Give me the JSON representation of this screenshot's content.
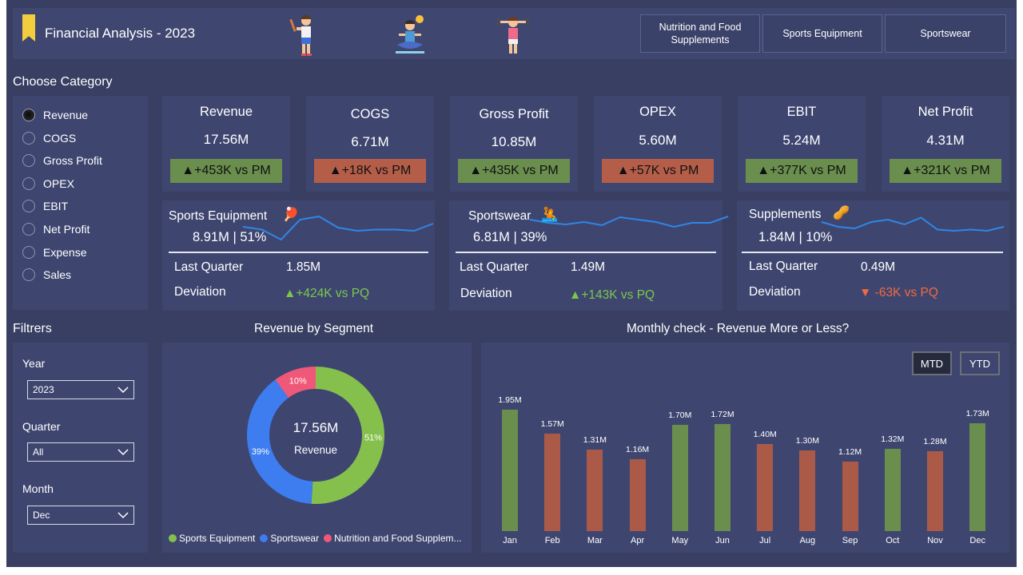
{
  "header": {
    "title": "Financial Analysis - 2023",
    "category_buttons": [
      "Nutrition and Food Supplements",
      "Sports Equipment",
      "Sportswear"
    ]
  },
  "category": {
    "title": "Choose Category",
    "options": [
      "Revenue",
      "COGS",
      "Gross Profit",
      "OPEX",
      "EBIT",
      "Net Profit",
      "Expense",
      "Sales"
    ],
    "selected": "Revenue"
  },
  "kpis": [
    {
      "title": "Revenue",
      "value": "17.56M",
      "delta": "+453K vs PM",
      "direction": "up"
    },
    {
      "title": "COGS",
      "value": "6.71M",
      "delta": "+18K vs PM",
      "direction": "down"
    },
    {
      "title": "Gross Profit",
      "value": "10.85M",
      "delta": "+435K vs PM",
      "direction": "up"
    },
    {
      "title": "OPEX",
      "value": "5.60M",
      "delta": "+57K vs PM",
      "direction": "down"
    },
    {
      "title": "EBIT",
      "value": "5.24M",
      "delta": "+377K vs PM",
      "direction": "up"
    },
    {
      "title": "Net Profit",
      "value": "4.31M",
      "delta": "+321K vs PM",
      "direction": "up"
    }
  ],
  "segments": [
    {
      "name": "Sports Equipment",
      "summary": "8.91M | 51%",
      "last_quarter_label": "Last Quarter",
      "last_quarter": "1.85M",
      "deviation_label": "Deviation",
      "deviation": "+424K vs PQ",
      "direction": "up",
      "trend": [
        0.62,
        0.55,
        0.3,
        0.8,
        0.88,
        0.6,
        0.52,
        0.55,
        0.55,
        0.52,
        0.7
      ]
    },
    {
      "name": "Sportswear",
      "summary": "6.81M | 39%",
      "last_quarter_label": "Last Quarter",
      "last_quarter": "1.49M",
      "deviation_label": "Deviation",
      "deviation": "+143K vs PQ",
      "direction": "up",
      "trend": [
        0.8,
        0.72,
        0.68,
        0.74,
        0.66,
        0.86,
        0.8,
        0.74,
        0.62,
        0.72,
        0.72,
        0.88
      ]
    },
    {
      "name": "Supplements",
      "summary": "1.84M | 10%",
      "last_quarter_label": "Last Quarter",
      "last_quarter": "0.49M",
      "deviation_label": "Deviation",
      "deviation": "-63K vs PQ",
      "direction": "down",
      "trend": [
        0.74,
        0.62,
        0.58,
        0.74,
        0.8,
        0.68,
        0.85,
        0.55,
        0.52,
        0.55,
        0.52,
        0.62
      ]
    }
  ],
  "filters": {
    "title": "Filtrers",
    "year": {
      "label": "Year",
      "value": "2023"
    },
    "quarter": {
      "label": "Quarter",
      "value": "All"
    },
    "month": {
      "label": "Month",
      "value": "Dec"
    }
  },
  "donut": {
    "title": "Revenue by Segment",
    "center_value": "17.56M",
    "center_label": "Revenue",
    "legend": [
      "Sports Equipment",
      "Sportswear",
      "Nutrition and Food Supplem..."
    ],
    "colors": [
      "#86c04c",
      "#3d7df0",
      "#ef5878"
    ]
  },
  "monthly": {
    "title": "Monthly check - Revenue More or Less?",
    "toggle": [
      "MTD",
      "YTD"
    ]
  },
  "chart_data": [
    {
      "type": "pie",
      "title": "Revenue by Segment",
      "categories": [
        "Sports Equipment",
        "Sportswear",
        "Nutrition and Food Supplem..."
      ],
      "values": [
        51,
        39,
        10
      ],
      "labels": [
        "51%",
        "39%",
        "10%"
      ]
    },
    {
      "type": "bar",
      "title": "Monthly check - Revenue More or Less?",
      "categories": [
        "Jan",
        "Feb",
        "Mar",
        "Apr",
        "May",
        "Jun",
        "Jul",
        "Aug",
        "Sep",
        "Oct",
        "Nov",
        "Dec"
      ],
      "values": [
        1.95,
        1.57,
        1.31,
        1.16,
        1.7,
        1.72,
        1.4,
        1.3,
        1.12,
        1.32,
        1.28,
        1.73
      ],
      "labels": [
        "1.95M",
        "1.57M",
        "1.31M",
        "1.16M",
        "1.70M",
        "1.72M",
        "1.40M",
        "1.30M",
        "1.12M",
        "1.32M",
        "1.28M",
        "1.73M"
      ],
      "status": [
        "more",
        "less",
        "less",
        "less",
        "more",
        "more",
        "less",
        "less",
        "less",
        "more",
        "less",
        "more"
      ],
      "colors": {
        "more": "#6a8e4d",
        "less": "#ac5a48"
      },
      "ylim": [
        0,
        2
      ]
    }
  ]
}
